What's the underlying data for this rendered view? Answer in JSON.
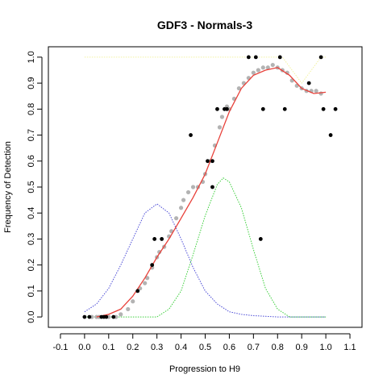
{
  "chart_data": {
    "type": "scatter",
    "title": "GDF3 - Normals-3",
    "xlabel": "Progression to H9",
    "ylabel": "Frequency of Detection",
    "xlim": [
      -0.15,
      1.15
    ],
    "ylim": [
      -0.04,
      1.04
    ],
    "x_ticks": [
      -0.1,
      0.0,
      0.1,
      0.2,
      0.3,
      0.4,
      0.5,
      0.6,
      0.7,
      0.8,
      0.9,
      1.0,
      1.1
    ],
    "x_tick_labels": [
      "-0.1",
      "0.0",
      "0.1",
      "0.2",
      "0.3",
      "0.4",
      "0.5",
      "0.6",
      "0.7",
      "0.8",
      "0.9",
      "1.0",
      "1.1"
    ],
    "y_ticks": [
      0.0,
      0.1,
      0.2,
      0.3,
      0.4,
      0.5,
      0.6,
      0.7,
      0.8,
      0.9,
      1.0
    ],
    "y_tick_labels": [
      "0.0",
      "0.1",
      "0.2",
      "0.3",
      "0.4",
      "0.5",
      "0.6",
      "0.7",
      "0.8",
      "0.9",
      "1.0"
    ],
    "colors": {
      "black_points": "#000000",
      "gray_points": "#b3b3b3",
      "smooth_fit": "#e8413a",
      "blue_density": "#4b4bd6",
      "green_density": "#3ccf3c",
      "yellow_line": "#f2f2a0"
    },
    "series": [
      {
        "style": "black-points",
        "points": [
          [
            0.0,
            0.0
          ],
          [
            0.02,
            0.0
          ],
          [
            0.07,
            0.0
          ],
          [
            0.08,
            0.0
          ],
          [
            0.09,
            0.0
          ],
          [
            0.12,
            0.0
          ],
          [
            0.22,
            0.1
          ],
          [
            0.28,
            0.2
          ],
          [
            0.29,
            0.3
          ],
          [
            0.32,
            0.3
          ],
          [
            0.44,
            0.7
          ],
          [
            0.51,
            0.6
          ],
          [
            0.53,
            0.6
          ],
          [
            0.53,
            0.5
          ],
          [
            0.55,
            0.8
          ],
          [
            0.58,
            0.8
          ],
          [
            0.59,
            0.8
          ],
          [
            0.68,
            1.0
          ],
          [
            0.71,
            1.0
          ],
          [
            0.73,
            0.3
          ],
          [
            0.74,
            0.8
          ],
          [
            0.81,
            1.0
          ],
          [
            0.83,
            0.8
          ],
          [
            0.93,
            0.9
          ],
          [
            0.98,
            1.0
          ],
          [
            0.99,
            0.8
          ],
          [
            1.02,
            0.7
          ],
          [
            1.04,
            0.8
          ]
        ]
      },
      {
        "style": "gray-points",
        "points": [
          [
            0.03,
            0.0
          ],
          [
            0.05,
            0.0
          ],
          [
            0.06,
            0.0
          ],
          [
            0.1,
            0.0
          ],
          [
            0.13,
            0.0
          ],
          [
            0.15,
            0.01
          ],
          [
            0.18,
            0.03
          ],
          [
            0.2,
            0.06
          ],
          [
            0.23,
            0.11
          ],
          [
            0.25,
            0.13
          ],
          [
            0.26,
            0.15
          ],
          [
            0.28,
            0.19
          ],
          [
            0.3,
            0.23
          ],
          [
            0.31,
            0.25
          ],
          [
            0.33,
            0.27
          ],
          [
            0.35,
            0.31
          ],
          [
            0.36,
            0.33
          ],
          [
            0.38,
            0.38
          ],
          [
            0.4,
            0.42
          ],
          [
            0.41,
            0.45
          ],
          [
            0.43,
            0.48
          ],
          [
            0.45,
            0.5
          ],
          [
            0.47,
            0.5
          ],
          [
            0.49,
            0.52
          ],
          [
            0.5,
            0.55
          ],
          [
            0.52,
            0.6
          ],
          [
            0.54,
            0.66
          ],
          [
            0.56,
            0.73
          ],
          [
            0.57,
            0.77
          ],
          [
            0.59,
            0.81
          ],
          [
            0.6,
            0.8
          ],
          [
            0.62,
            0.84
          ],
          [
            0.64,
            0.88
          ],
          [
            0.66,
            0.9
          ],
          [
            0.68,
            0.92
          ],
          [
            0.7,
            0.94
          ],
          [
            0.72,
            0.95
          ],
          [
            0.74,
            0.96
          ],
          [
            0.76,
            0.96
          ],
          [
            0.78,
            0.97
          ],
          [
            0.8,
            0.96
          ],
          [
            0.82,
            0.95
          ],
          [
            0.84,
            0.94
          ],
          [
            0.86,
            0.91
          ],
          [
            0.88,
            0.89
          ],
          [
            0.9,
            0.88
          ],
          [
            0.92,
            0.87
          ],
          [
            0.94,
            0.87
          ],
          [
            0.96,
            0.87
          ],
          [
            0.98,
            0.86
          ]
        ]
      },
      {
        "style": "smooth-fit-red",
        "points": [
          [
            0.05,
            0.0
          ],
          [
            0.1,
            0.01
          ],
          [
            0.15,
            0.03
          ],
          [
            0.2,
            0.08
          ],
          [
            0.25,
            0.15
          ],
          [
            0.3,
            0.23
          ],
          [
            0.35,
            0.3
          ],
          [
            0.4,
            0.38
          ],
          [
            0.45,
            0.46
          ],
          [
            0.5,
            0.55
          ],
          [
            0.55,
            0.67
          ],
          [
            0.6,
            0.79
          ],
          [
            0.65,
            0.88
          ],
          [
            0.7,
            0.93
          ],
          [
            0.75,
            0.95
          ],
          [
            0.8,
            0.96
          ],
          [
            0.85,
            0.93
          ],
          [
            0.9,
            0.88
          ],
          [
            0.95,
            0.86
          ],
          [
            1.0,
            0.865
          ]
        ]
      },
      {
        "style": "density-blue",
        "points": [
          [
            0.0,
            0.02
          ],
          [
            0.05,
            0.05
          ],
          [
            0.1,
            0.11
          ],
          [
            0.15,
            0.2
          ],
          [
            0.2,
            0.3
          ],
          [
            0.25,
            0.4
          ],
          [
            0.3,
            0.435
          ],
          [
            0.35,
            0.4
          ],
          [
            0.4,
            0.3
          ],
          [
            0.45,
            0.19
          ],
          [
            0.5,
            0.1
          ],
          [
            0.55,
            0.05
          ],
          [
            0.6,
            0.02
          ],
          [
            0.65,
            0.01
          ],
          [
            0.7,
            0.005
          ],
          [
            0.8,
            0.0
          ],
          [
            1.0,
            0.0
          ]
        ]
      },
      {
        "style": "density-green",
        "points": [
          [
            0.0,
            0.0
          ],
          [
            0.3,
            0.0
          ],
          [
            0.35,
            0.03
          ],
          [
            0.4,
            0.1
          ],
          [
            0.45,
            0.24
          ],
          [
            0.5,
            0.39
          ],
          [
            0.55,
            0.51
          ],
          [
            0.575,
            0.535
          ],
          [
            0.6,
            0.52
          ],
          [
            0.65,
            0.42
          ],
          [
            0.7,
            0.26
          ],
          [
            0.75,
            0.11
          ],
          [
            0.8,
            0.03
          ],
          [
            0.85,
            0.0
          ],
          [
            1.0,
            0.0
          ]
        ]
      },
      {
        "style": "yellow-line",
        "points": [
          [
            0.0,
            1.0
          ],
          [
            0.82,
            1.0
          ],
          [
            0.86,
            0.95
          ],
          [
            0.9,
            0.9
          ],
          [
            0.94,
            0.95
          ],
          [
            0.98,
            1.0
          ],
          [
            1.0,
            1.0
          ]
        ]
      }
    ]
  }
}
